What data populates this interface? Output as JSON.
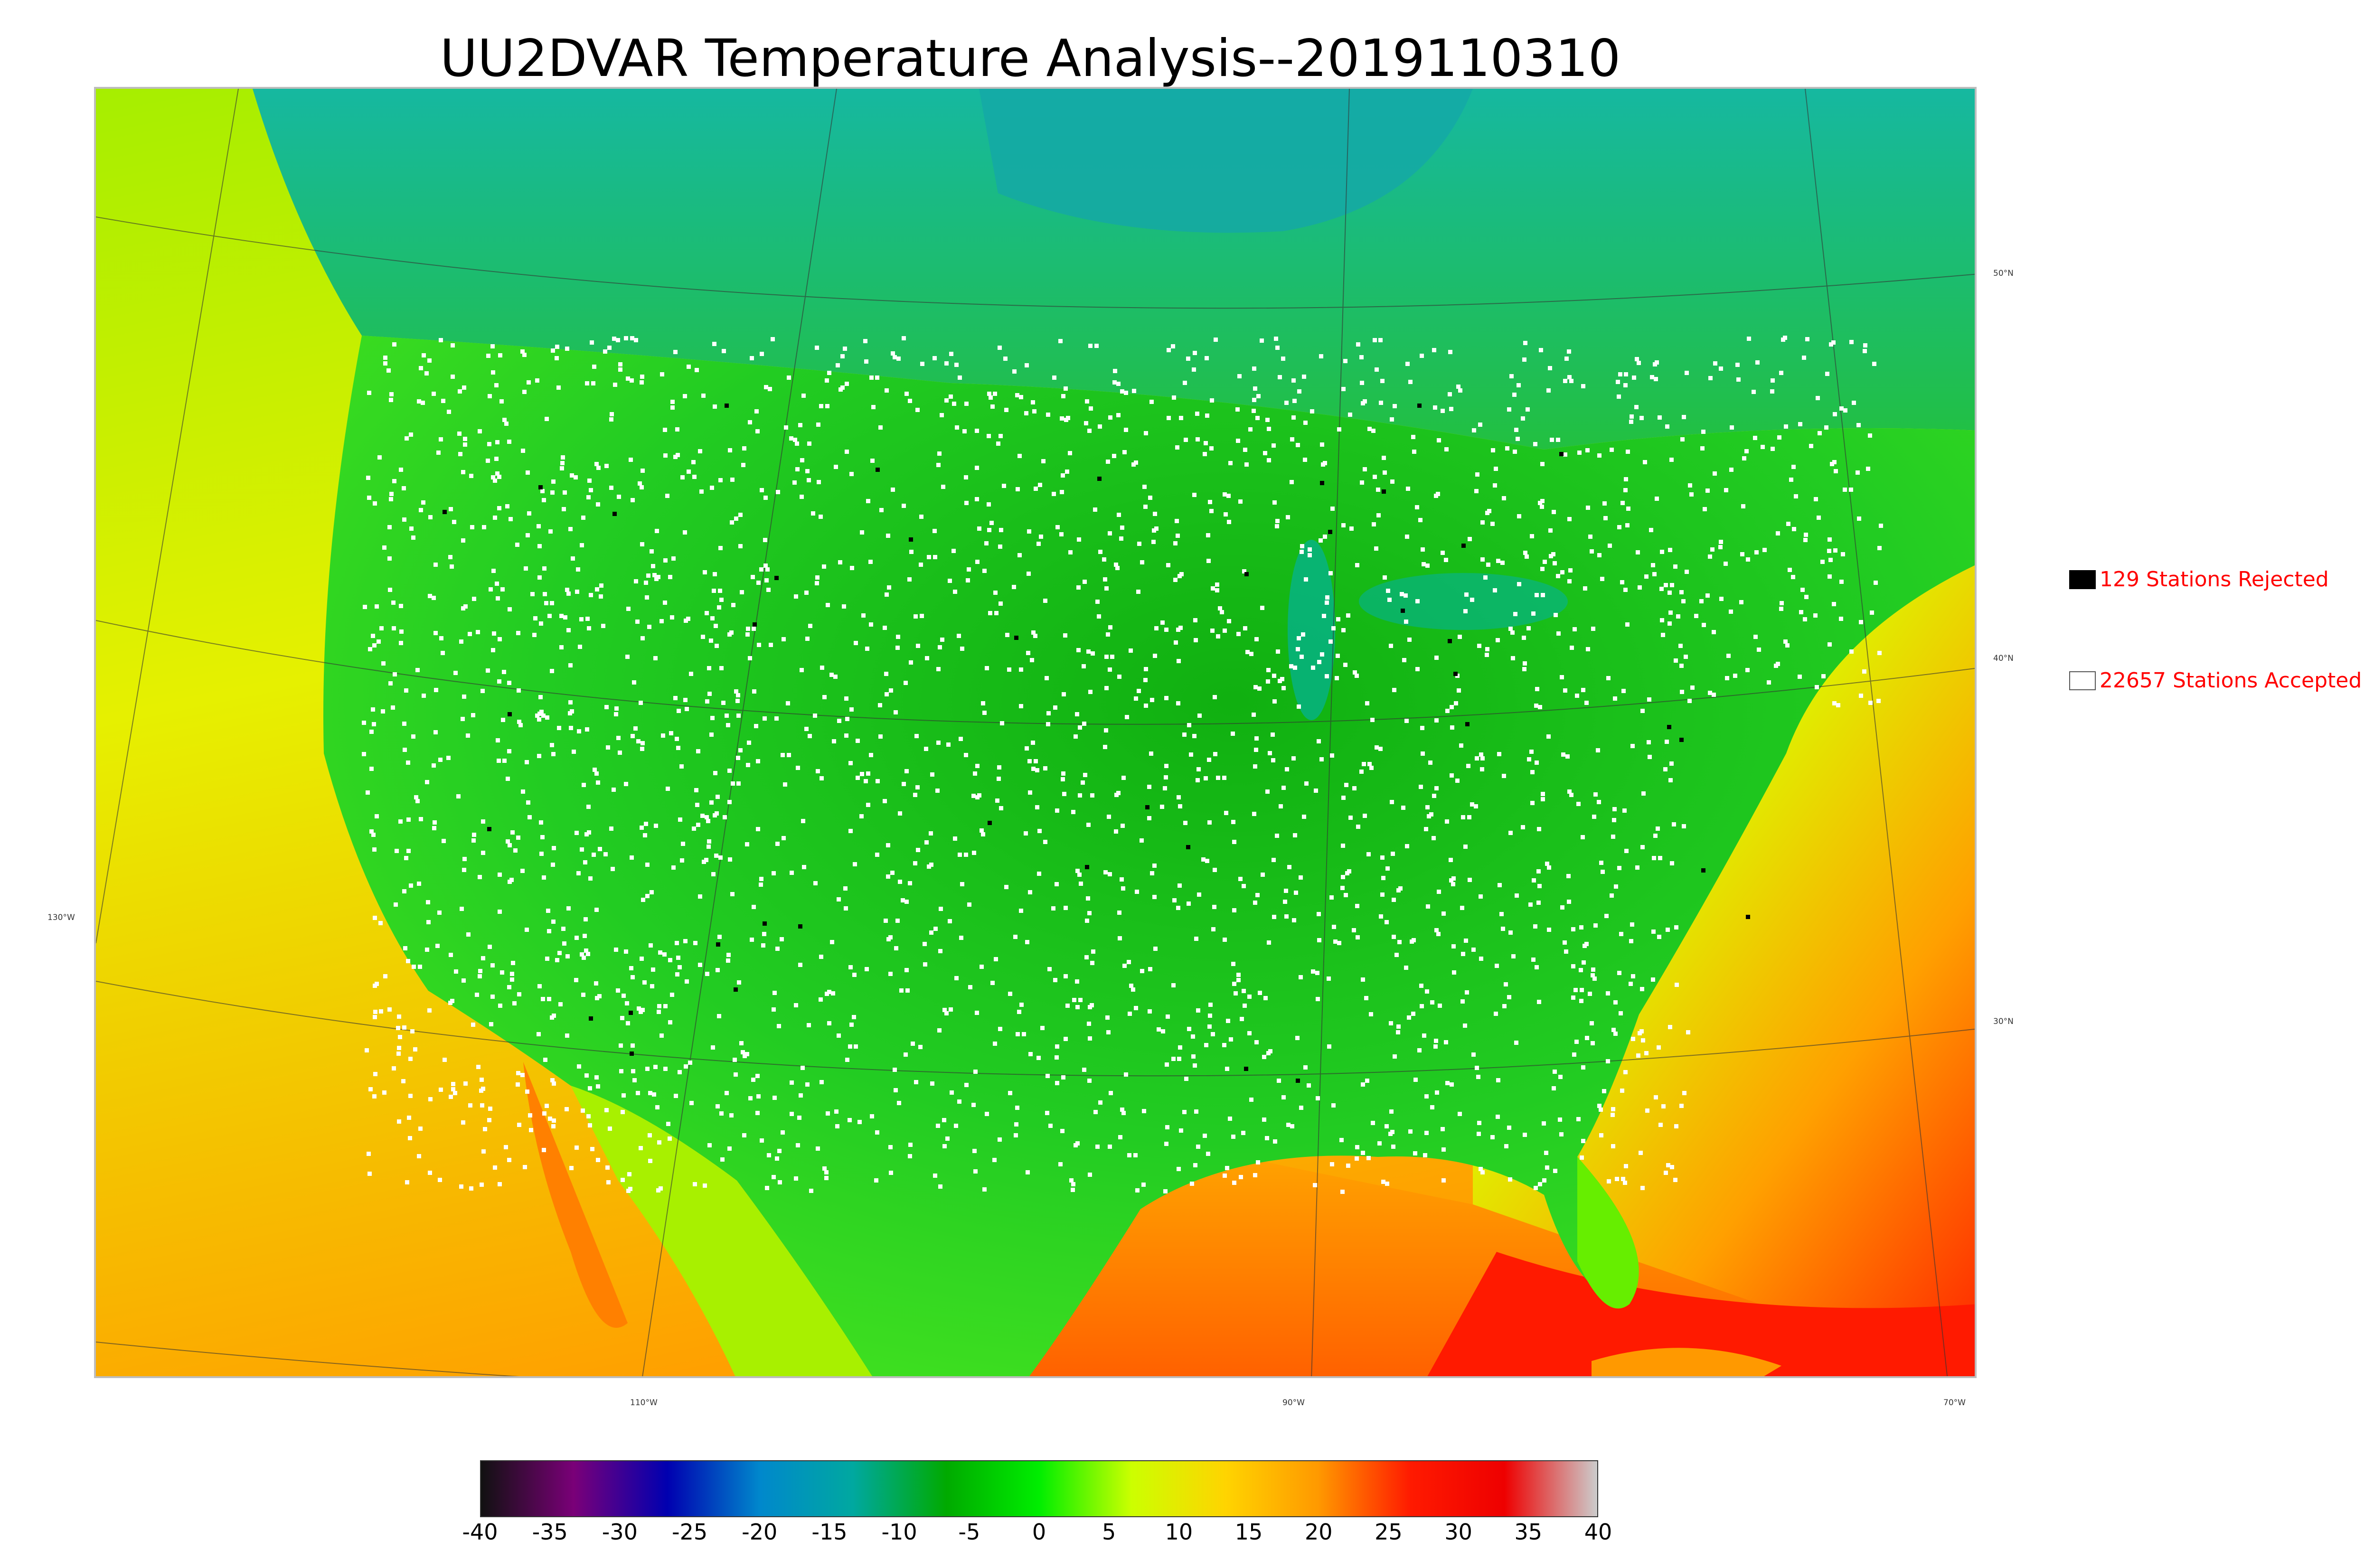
{
  "title": "UU2DVAR Temperature Analysis--2019110310",
  "legend": {
    "rejected": {
      "label": "129 Stations Rejected",
      "color": "#000000"
    },
    "accepted": {
      "label": "22657 Stations Accepted",
      "color": "#ffffff"
    }
  },
  "map": {
    "lat_labels": [
      "50°N",
      "40°N",
      "30°N"
    ],
    "lon_labels": [
      "130°W",
      "110°W",
      "90°W",
      "70°W"
    ]
  },
  "colorbar": {
    "ticks": [
      "-40",
      "-35",
      "-30",
      "-25",
      "-20",
      "-15",
      "-10",
      "-5",
      "0",
      "5",
      "10",
      "15",
      "20",
      "25",
      "30",
      "35",
      "40"
    ],
    "colors": [
      "#111111",
      "#7a0078",
      "#0000b0",
      "#0088cc",
      "#00a8a0",
      "#00aa00",
      "#00ee00",
      "#ccff00",
      "#ffd400",
      "#ff9900",
      "#ff1a00",
      "#ee0000",
      "#cccccc"
    ]
  }
}
